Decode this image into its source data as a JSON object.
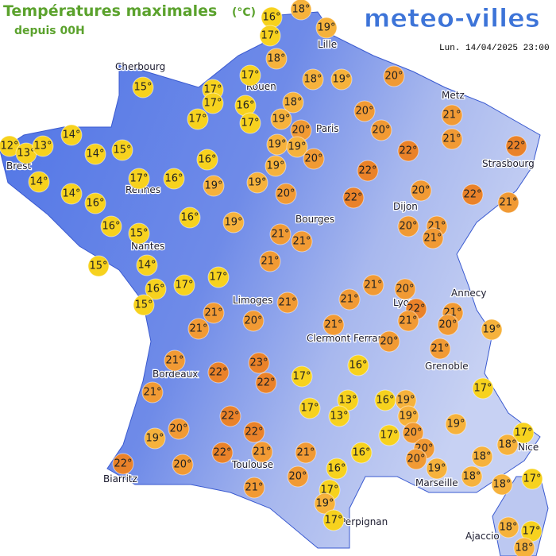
{
  "header": {
    "title": "Températures maximales",
    "unit": "(°C)",
    "subtitle": "depuis 00H",
    "brand": "meteo-villes",
    "timestamp": "Lun. 14/04/2025 23:00"
  },
  "cities": [
    "Cherbourg",
    "Lille",
    "Rouen",
    "Paris",
    "Metz",
    "Strasbourg",
    "Brest",
    "Rennes",
    "Nantes",
    "Dijon",
    "Bourges",
    "Limoges",
    "Lyon",
    "Annecy",
    "Clermont Ferrand",
    "Grenoble",
    "Bordeaux",
    "Toulouse",
    "Nice",
    "Marseille",
    "Biarritz",
    "Perpignan",
    "Ajaccio"
  ],
  "markers": [
    {
      "value": 16,
      "label": "16°"
    },
    {
      "value": 18,
      "label": "18°"
    },
    {
      "value": 17,
      "label": "17°"
    },
    {
      "value": 19,
      "label": "19°"
    },
    {
      "value": 18,
      "label": "18°"
    },
    {
      "value": 17,
      "label": "17°"
    },
    {
      "value": 18,
      "label": "18°"
    },
    {
      "value": 19,
      "label": "19°"
    },
    {
      "value": 20,
      "label": "20°"
    },
    {
      "value": 15,
      "label": "15°"
    },
    {
      "value": 17,
      "label": "17°"
    },
    {
      "value": 17,
      "label": "17°"
    },
    {
      "value": 16,
      "label": "16°"
    },
    {
      "value": 18,
      "label": "18°"
    },
    {
      "value": 17,
      "label": "17°"
    },
    {
      "value": 17,
      "label": "17°"
    },
    {
      "value": 19,
      "label": "19°"
    },
    {
      "value": 20,
      "label": "20°"
    },
    {
      "value": 21,
      "label": "21°"
    },
    {
      "value": 14,
      "label": "14°"
    },
    {
      "value": 12,
      "label": "12°"
    },
    {
      "value": 13,
      "label": "13°"
    },
    {
      "value": 13,
      "label": "13°"
    },
    {
      "value": 14,
      "label": "14°"
    },
    {
      "value": 15,
      "label": "15°"
    },
    {
      "value": 20,
      "label": "20°"
    },
    {
      "value": 20,
      "label": "20°"
    },
    {
      "value": 21,
      "label": "21°"
    },
    {
      "value": 19,
      "label": "19°"
    },
    {
      "value": 19,
      "label": "19°"
    },
    {
      "value": 20,
      "label": "20°"
    },
    {
      "value": 22,
      "label": "22°"
    },
    {
      "value": 22,
      "label": "22°"
    },
    {
      "value": 16,
      "label": "16°"
    },
    {
      "value": 14,
      "label": "14°"
    },
    {
      "value": 17,
      "label": "17°"
    },
    {
      "value": 16,
      "label": "16°"
    },
    {
      "value": 19,
      "label": "19°"
    },
    {
      "value": 22,
      "label": "22°"
    },
    {
      "value": 19,
      "label": "19°"
    },
    {
      "value": 19,
      "label": "19°"
    },
    {
      "value": 14,
      "label": "14°"
    },
    {
      "value": 16,
      "label": "16°"
    },
    {
      "value": 20,
      "label": "20°"
    },
    {
      "value": 22,
      "label": "22°"
    },
    {
      "value": 20,
      "label": "20°"
    },
    {
      "value": 22,
      "label": "22°"
    },
    {
      "value": 21,
      "label": "21°"
    },
    {
      "value": 16,
      "label": "16°"
    },
    {
      "value": 19,
      "label": "19°"
    },
    {
      "value": 16,
      "label": "16°"
    },
    {
      "value": 15,
      "label": "15°"
    },
    {
      "value": 21,
      "label": "21°"
    },
    {
      "value": 21,
      "label": "21°"
    },
    {
      "value": 20,
      "label": "20°"
    },
    {
      "value": 21,
      "label": "21°"
    },
    {
      "value": 21,
      "label": "21°"
    },
    {
      "value": 15,
      "label": "15°"
    },
    {
      "value": 14,
      "label": "14°"
    },
    {
      "value": 21,
      "label": "21°"
    },
    {
      "value": 16,
      "label": "16°"
    },
    {
      "value": 17,
      "label": "17°"
    },
    {
      "value": 17,
      "label": "17°"
    },
    {
      "value": 21,
      "label": "21°"
    },
    {
      "value": 20,
      "label": "20°"
    },
    {
      "value": 15,
      "label": "15°"
    },
    {
      "value": 21,
      "label": "21°"
    },
    {
      "value": 21,
      "label": "21°"
    },
    {
      "value": 22,
      "label": "22°"
    },
    {
      "value": 21,
      "label": "21°"
    },
    {
      "value": 21,
      "label": "21°"
    },
    {
      "value": 21,
      "label": "21°"
    },
    {
      "value": 20,
      "label": "20°"
    },
    {
      "value": 21,
      "label": "21°"
    },
    {
      "value": 20,
      "label": "20°"
    },
    {
      "value": 21,
      "label": "21°"
    },
    {
      "value": 19,
      "label": "19°"
    },
    {
      "value": 20,
      "label": "20°"
    },
    {
      "value": 21,
      "label": "21°"
    },
    {
      "value": 21,
      "label": "21°"
    },
    {
      "value": 23,
      "label": "23°"
    },
    {
      "value": 22,
      "label": "22°"
    },
    {
      "value": 22,
      "label": "22°"
    },
    {
      "value": 17,
      "label": "17°"
    },
    {
      "value": 16,
      "label": "16°"
    },
    {
      "value": 21,
      "label": "21°"
    },
    {
      "value": 17,
      "label": "17°"
    },
    {
      "value": 13,
      "label": "13°"
    },
    {
      "value": 17,
      "label": "17°"
    },
    {
      "value": 13,
      "label": "13°"
    },
    {
      "value": 16,
      "label": "16°"
    },
    {
      "value": 19,
      "label": "19°"
    },
    {
      "value": 19,
      "label": "19°"
    },
    {
      "value": 22,
      "label": "22°"
    },
    {
      "value": 20,
      "label": "20°"
    },
    {
      "value": 22,
      "label": "22°"
    },
    {
      "value": 19,
      "label": "19°"
    },
    {
      "value": 19,
      "label": "19°"
    },
    {
      "value": 17,
      "label": "17°"
    },
    {
      "value": 20,
      "label": "20°"
    },
    {
      "value": 17,
      "label": "17°"
    },
    {
      "value": 18,
      "label": "18°"
    },
    {
      "value": 22,
      "label": "22°"
    },
    {
      "value": 21,
      "label": "21°"
    },
    {
      "value": 21,
      "label": "21°"
    },
    {
      "value": 16,
      "label": "16°"
    },
    {
      "value": 20,
      "label": "20°"
    },
    {
      "value": 20,
      "label": "20°"
    },
    {
      "value": 18,
      "label": "18°"
    },
    {
      "value": 16,
      "label": "16°"
    },
    {
      "value": 19,
      "label": "19°"
    },
    {
      "value": 22,
      "label": "22°"
    },
    {
      "value": 20,
      "label": "20°"
    },
    {
      "value": 20,
      "label": "20°"
    },
    {
      "value": 18,
      "label": "18°"
    },
    {
      "value": 18,
      "label": "18°"
    },
    {
      "value": 17,
      "label": "17°"
    },
    {
      "value": 21,
      "label": "21°"
    },
    {
      "value": 17,
      "label": "17°"
    },
    {
      "value": 19,
      "label": "19°"
    },
    {
      "value": 17,
      "label": "17°"
    },
    {
      "value": 18,
      "label": "18°"
    },
    {
      "value": 17,
      "label": "17°"
    },
    {
      "value": 18,
      "label": "18°"
    }
  ]
}
